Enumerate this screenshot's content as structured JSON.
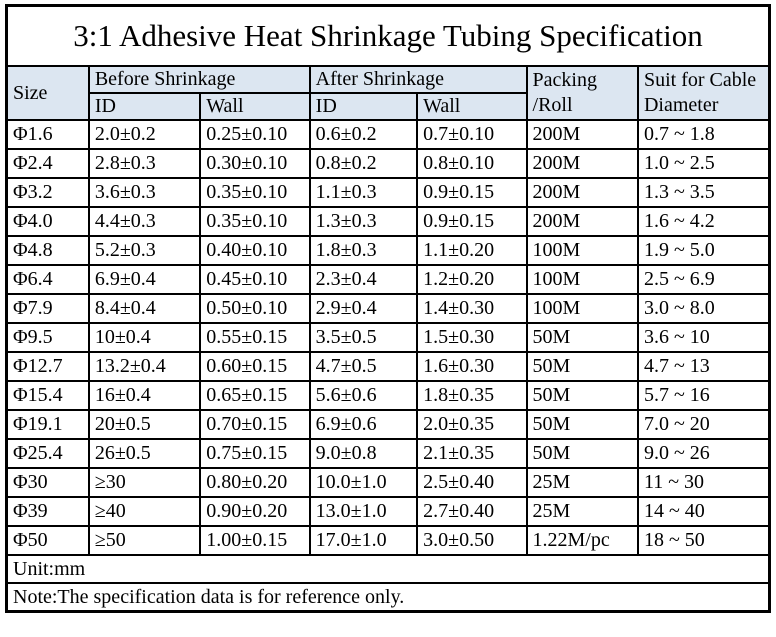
{
  "title": "3:1 Adhesive Heat Shrinkage Tubing Specification",
  "colors": {
    "header_bg": "#dce6f1",
    "border": "#000000",
    "text": "#000000",
    "page_bg": "#ffffff"
  },
  "table": {
    "header": {
      "size": "Size",
      "before_group": "Before Shrinkage",
      "after_group": "After Shrinkage",
      "before_id": "ID",
      "before_wall": "Wall",
      "after_id": "ID",
      "after_wall": "Wall",
      "packing_line1": "Packing",
      "packing_line2": "/Roll",
      "suit_line1": "Suit for Cable",
      "suit_line2": "Diameter"
    },
    "rows": [
      [
        "Φ1.6",
        "2.0±0.2",
        "0.25±0.10",
        "0.6±0.2",
        "0.7±0.10",
        "200M",
        "0.7 ~ 1.8"
      ],
      [
        "Φ2.4",
        "2.8±0.3",
        "0.30±0.10",
        "0.8±0.2",
        "0.8±0.10",
        "200M",
        "1.0 ~ 2.5"
      ],
      [
        "Φ3.2",
        "3.6±0.3",
        "0.35±0.10",
        "1.1±0.3",
        "0.9±0.15",
        "200M",
        "1.3 ~ 3.5"
      ],
      [
        "Φ4.0",
        "4.4±0.3",
        "0.35±0.10",
        "1.3±0.3",
        "0.9±0.15",
        "200M",
        "1.6 ~ 4.2"
      ],
      [
        "Φ4.8",
        "5.2±0.3",
        "0.40±0.10",
        "1.8±0.3",
        "1.1±0.20",
        "100M",
        "1.9 ~ 5.0"
      ],
      [
        "Φ6.4",
        "6.9±0.4",
        "0.45±0.10",
        "2.3±0.4",
        "1.2±0.20",
        "100M",
        "2.5 ~ 6.9"
      ],
      [
        "Φ7.9",
        "8.4±0.4",
        "0.50±0.10",
        "2.9±0.4",
        "1.4±0.30",
        "100M",
        "3.0 ~ 8.0"
      ],
      [
        "Φ9.5",
        "10±0.4",
        "0.55±0.15",
        "3.5±0.5",
        "1.5±0.30",
        "50M",
        "3.6 ~ 10"
      ],
      [
        "Φ12.7",
        "13.2±0.4",
        "0.60±0.15",
        "4.7±0.5",
        "1.6±0.30",
        "50M",
        "4.7 ~ 13"
      ],
      [
        "Φ15.4",
        "16±0.4",
        "0.65±0.15",
        "5.6±0.6",
        "1.8±0.35",
        "50M",
        "5.7 ~ 16"
      ],
      [
        "Φ19.1",
        "20±0.5",
        "0.70±0.15",
        "6.9±0.6",
        "2.0±0.35",
        "50M",
        "7.0 ~ 20"
      ],
      [
        "Φ25.4",
        "26±0.5",
        "0.75±0.15",
        "9.0±0.8",
        "2.1±0.35",
        "50M",
        "9.0 ~ 26"
      ],
      [
        "Φ30",
        "≥30",
        "0.80±0.20",
        "10.0±1.0",
        "2.5±0.40",
        "25M",
        "11 ~ 30"
      ],
      [
        "Φ39",
        "≥40",
        "0.90±0.20",
        "13.0±1.0",
        "2.7±0.40",
        "25M",
        "14 ~ 40"
      ],
      [
        "Φ50",
        "≥50",
        "1.00±0.15",
        "17.0±1.0",
        "3.0±0.50",
        "1.22M/pc",
        "18 ~ 50"
      ]
    ],
    "footer": {
      "unit": "Unit:mm",
      "note": "Note:The specification data is for reference only."
    }
  }
}
